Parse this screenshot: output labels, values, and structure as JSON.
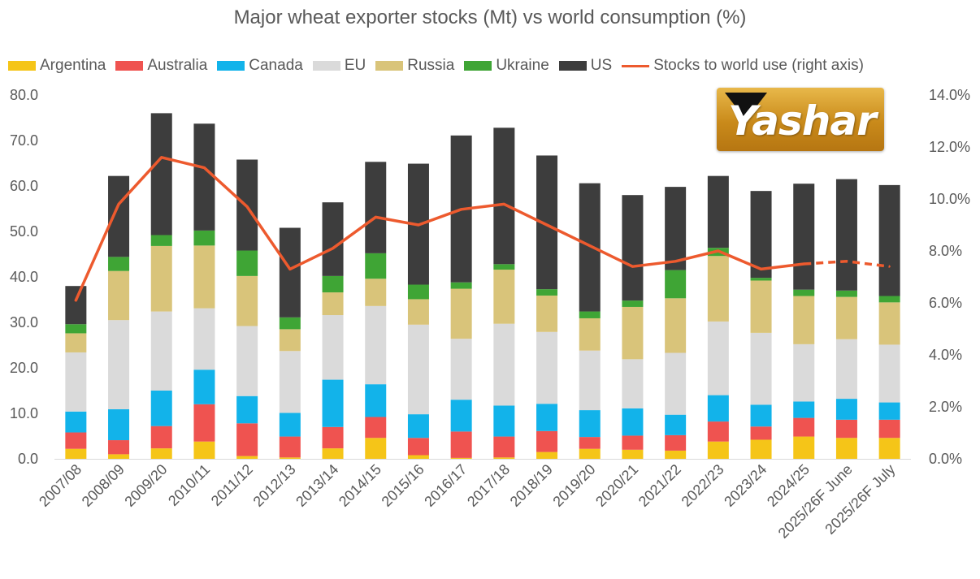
{
  "chart_data": {
    "type": "bar",
    "stacked": true,
    "title": "Major wheat exporter stocks (Mt) vs world consumption (%)",
    "categories": [
      "2007/08",
      "2008/09",
      "2009/20",
      "2010/11",
      "2011/12",
      "2012/13",
      "2013/14",
      "2014/15",
      "2015/16",
      "2016/17",
      "2017/18",
      "2018/19",
      "2019/20",
      "2020/21",
      "2021/22",
      "2022/23",
      "2023/24",
      "2024/25",
      "2025/26F June",
      "2025/26F July"
    ],
    "series": [
      {
        "name": "Argentina",
        "color": "#f5c518",
        "values": [
          2.2,
          1.0,
          2.3,
          3.8,
          0.6,
          0.3,
          2.3,
          4.6,
          0.8,
          0.2,
          0.3,
          1.5,
          2.2,
          2.0,
          1.8,
          3.8,
          4.2,
          4.9,
          4.6,
          4.6
        ]
      },
      {
        "name": "Australia",
        "color": "#ef5350",
        "values": [
          3.6,
          3.1,
          4.9,
          8.2,
          7.2,
          4.6,
          4.7,
          4.6,
          3.8,
          5.8,
          4.6,
          4.6,
          2.6,
          3.1,
          3.4,
          4.4,
          2.9,
          4.1,
          4.0,
          4.0
        ]
      },
      {
        "name": "Canada",
        "color": "#12b3ea",
        "values": [
          4.6,
          6.8,
          7.8,
          7.6,
          6.0,
          5.2,
          10.4,
          7.2,
          5.2,
          7.0,
          6.8,
          6.0,
          5.9,
          6.0,
          4.5,
          5.8,
          4.8,
          3.6,
          4.6,
          3.8
        ]
      },
      {
        "name": "EU",
        "color": "#dadada",
        "values": [
          13.0,
          19.6,
          17.4,
          13.5,
          15.4,
          13.6,
          14.2,
          17.2,
          19.7,
          13.4,
          18.0,
          15.8,
          13.1,
          10.8,
          13.6,
          16.2,
          15.8,
          12.6,
          13.1,
          12.7
        ]
      },
      {
        "name": "Russia",
        "color": "#d9c47a",
        "values": [
          4.2,
          10.8,
          14.4,
          13.8,
          11.0,
          4.8,
          5.0,
          6.0,
          5.6,
          11.0,
          11.9,
          8.0,
          7.1,
          11.5,
          12.0,
          14.4,
          11.5,
          10.6,
          9.3,
          9.3
        ]
      },
      {
        "name": "Ukraine",
        "color": "#3fa535",
        "values": [
          2.0,
          3.1,
          2.4,
          3.3,
          5.6,
          2.6,
          3.6,
          5.6,
          3.2,
          1.4,
          1.2,
          1.4,
          1.5,
          1.4,
          6.2,
          1.8,
          0.6,
          1.4,
          1.4,
          1.4
        ]
      },
      {
        "name": "US",
        "color": "#3d3d3d",
        "values": [
          8.4,
          17.8,
          26.8,
          23.5,
          20.0,
          19.7,
          16.2,
          20.1,
          26.6,
          32.3,
          30.0,
          29.4,
          28.2,
          23.2,
          18.3,
          15.8,
          19.1,
          23.3,
          24.5,
          24.4
        ]
      },
      {
        "name": "Stocks to world use (right axis)",
        "type": "line",
        "axis": "right",
        "color": "#ed5a2e",
        "values": [
          6.1,
          9.8,
          11.6,
          11.2,
          9.7,
          7.3,
          8.1,
          9.3,
          9.0,
          9.6,
          9.8,
          9.0,
          8.2,
          7.4,
          7.6,
          8.0,
          7.3,
          7.5,
          7.6,
          7.4
        ],
        "dashed_from": "2024/25"
      }
    ],
    "y_left": {
      "min": 0,
      "max": 80,
      "step": 10,
      "ticks": [
        "0.0",
        "10.0",
        "20.0",
        "30.0",
        "40.0",
        "50.0",
        "60.0",
        "70.0",
        "80.0"
      ]
    },
    "y_right": {
      "min": 0,
      "max": 14,
      "step": 2,
      "ticks": [
        "0.0%",
        "2.0%",
        "4.0%",
        "6.0%",
        "8.0%",
        "10.0%",
        "12.0%",
        "14.0%"
      ]
    },
    "grid": false,
    "legend_position": "top"
  },
  "logo": {
    "text": "Yashar"
  }
}
